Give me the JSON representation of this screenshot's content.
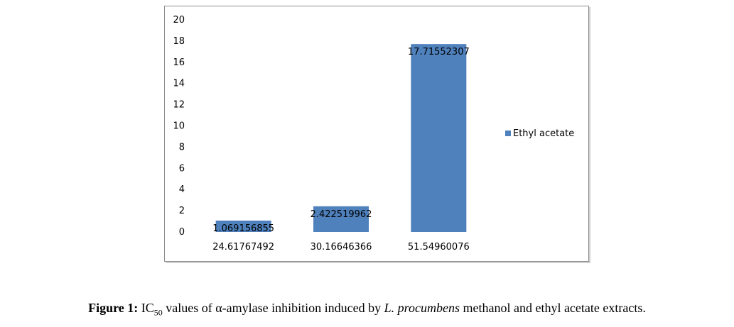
{
  "chart_data": {
    "type": "bar",
    "categories": [
      "24.61767492",
      "30.16646366",
      "51.54960076"
    ],
    "series": [
      {
        "name": "Ethyl acetate",
        "color": "#4f81bd",
        "values": [
          1.069156855,
          2.422519962,
          17.71552307
        ],
        "value_labels": [
          "1.069156855",
          "2.422519962",
          "17.71552307"
        ]
      }
    ],
    "ylim": [
      0,
      20
    ],
    "yticks": [
      0,
      2,
      4,
      6,
      8,
      10,
      12,
      14,
      16,
      18,
      20
    ],
    "grid": false,
    "legend_position": "right"
  },
  "caption": {
    "prefix": "Figure 1:",
    "ic": "IC",
    "sub": "50",
    "part1": " values of α-amylase inhibition induced by ",
    "species": "L. procumbens",
    "part2": " methanol and ethyl acetate extracts."
  }
}
